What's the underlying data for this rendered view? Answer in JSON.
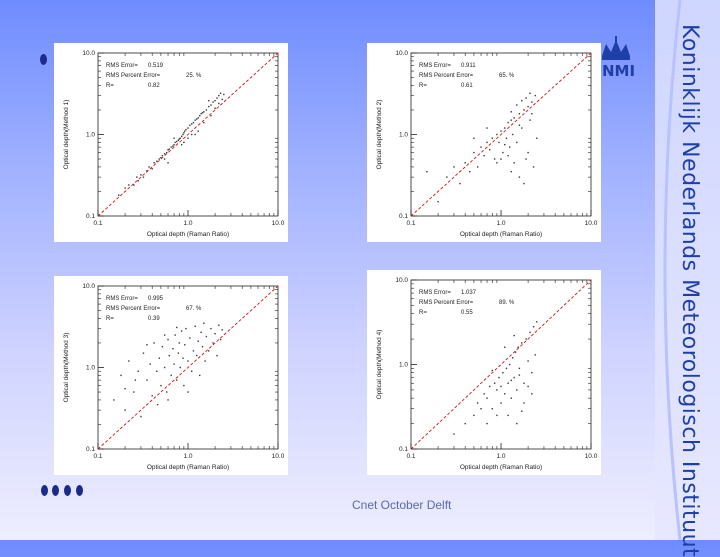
{
  "footer": "Cnet October Delft",
  "logo": {
    "text": "NMI",
    "icon": "crown-icon"
  },
  "sidebar_text": "Koninklijk Nederlands Meteorologisch Instituut",
  "colors": {
    "diagonal": "#c81818",
    "points": "#3a3a3a",
    "title_text": "#1f3fa8"
  },
  "chart_data": [
    {
      "type": "scatter",
      "scale": "log",
      "xlim": [
        0.1,
        10.0
      ],
      "ylim": [
        0.1,
        10.0
      ],
      "xticks": [
        "0.1",
        "1.0",
        "10.0"
      ],
      "yticks": [
        "0.1",
        "1.0",
        "10.0"
      ],
      "xlabel": "Optical depth (Raman Ratio)",
      "ylabel": "Optical depth(Method 1)",
      "stats": [
        {
          "label": "RMS Error=",
          "value": "0.519"
        },
        {
          "label": "RMS Percent Error=",
          "value": "25. %"
        },
        {
          "label": "R=",
          "value": "0.82"
        }
      ],
      "reference_line": "y = x",
      "points": [
        [
          0.17,
          0.18
        ],
        [
          0.2,
          0.22
        ],
        [
          0.22,
          0.24
        ],
        [
          0.25,
          0.24
        ],
        [
          0.27,
          0.3
        ],
        [
          0.28,
          0.27
        ],
        [
          0.3,
          0.32
        ],
        [
          0.32,
          0.3
        ],
        [
          0.35,
          0.36
        ],
        [
          0.37,
          0.4
        ],
        [
          0.4,
          0.38
        ],
        [
          0.42,
          0.45
        ],
        [
          0.45,
          0.47
        ],
        [
          0.48,
          0.5
        ],
        [
          0.5,
          0.52
        ],
        [
          0.52,
          0.55
        ],
        [
          0.55,
          0.58
        ],
        [
          0.58,
          0.6
        ],
        [
          0.6,
          0.65
        ],
        [
          0.62,
          0.66
        ],
        [
          0.65,
          0.7
        ],
        [
          0.68,
          0.72
        ],
        [
          0.7,
          0.75
        ],
        [
          0.72,
          0.8
        ],
        [
          0.75,
          0.82
        ],
        [
          0.78,
          0.85
        ],
        [
          0.8,
          0.88
        ],
        [
          0.82,
          0.9
        ],
        [
          0.85,
          0.95
        ],
        [
          0.88,
          1.0
        ],
        [
          0.9,
          1.05
        ],
        [
          0.92,
          1.1
        ],
        [
          0.95,
          1.15
        ],
        [
          1.0,
          1.2
        ],
        [
          1.05,
          1.3
        ],
        [
          1.1,
          1.35
        ],
        [
          1.15,
          1.4
        ],
        [
          1.2,
          1.5
        ],
        [
          1.25,
          1.55
        ],
        [
          1.3,
          1.6
        ],
        [
          1.35,
          1.7
        ],
        [
          1.4,
          1.8
        ],
        [
          1.45,
          1.85
        ],
        [
          1.5,
          1.9
        ],
        [
          1.6,
          2.0
        ],
        [
          1.7,
          2.2
        ],
        [
          1.8,
          2.3
        ],
        [
          1.9,
          2.5
        ],
        [
          2.0,
          2.6
        ],
        [
          2.1,
          2.8
        ],
        [
          2.2,
          3.0
        ],
        [
          2.3,
          3.2
        ],
        [
          2.4,
          2.7
        ],
        [
          2.5,
          3.1
        ],
        [
          1.2,
          1.0
        ],
        [
          0.9,
          0.8
        ],
        [
          0.7,
          0.9
        ],
        [
          1.5,
          1.4
        ],
        [
          2.0,
          2.1
        ],
        [
          1.8,
          1.7
        ],
        [
          1.3,
          1.1
        ],
        [
          0.55,
          0.5
        ],
        [
          0.6,
          0.45
        ],
        [
          1.0,
          0.9
        ],
        [
          1.7,
          2.6
        ],
        [
          2.2,
          2.4
        ],
        [
          1.1,
          1.0
        ],
        [
          0.85,
          0.75
        ]
      ]
    },
    {
      "type": "scatter",
      "scale": "log",
      "xlim": [
        0.1,
        10.0
      ],
      "ylim": [
        0.1,
        10.0
      ],
      "xticks": [
        "0.1",
        "1.0",
        "10.0"
      ],
      "yticks": [
        "0.1",
        "1.0",
        "10.0"
      ],
      "xlabel": "Optical depth (Raman Ratio)",
      "ylabel": "Optical depth(Method 2)",
      "stats": [
        {
          "label": "RMS Error=",
          "value": "0.911"
        },
        {
          "label": "RMS Percent Error=",
          "value": "65. %"
        },
        {
          "label": "R=",
          "value": "0.61"
        }
      ],
      "reference_line": "y = x",
      "points": [
        [
          0.15,
          0.35
        ],
        [
          0.2,
          0.15
        ],
        [
          0.25,
          0.3
        ],
        [
          0.3,
          0.4
        ],
        [
          0.35,
          0.25
        ],
        [
          0.4,
          0.45
        ],
        [
          0.45,
          0.35
        ],
        [
          0.5,
          0.6
        ],
        [
          0.55,
          0.4
        ],
        [
          0.6,
          0.7
        ],
        [
          0.65,
          0.55
        ],
        [
          0.7,
          0.8
        ],
        [
          0.75,
          0.65
        ],
        [
          0.8,
          0.9
        ],
        [
          0.85,
          0.5
        ],
        [
          0.9,
          1.0
        ],
        [
          0.95,
          0.8
        ],
        [
          1.0,
          1.1
        ],
        [
          1.05,
          0.6
        ],
        [
          1.1,
          1.2
        ],
        [
          1.15,
          0.9
        ],
        [
          1.2,
          1.4
        ],
        [
          1.25,
          0.7
        ],
        [
          1.3,
          1.5
        ],
        [
          1.35,
          1.0
        ],
        [
          1.4,
          1.6
        ],
        [
          1.5,
          0.8
        ],
        [
          1.6,
          1.8
        ],
        [
          1.7,
          1.2
        ],
        [
          1.8,
          2.0
        ],
        [
          1.9,
          0.5
        ],
        [
          2.0,
          2.2
        ],
        [
          2.1,
          1.5
        ],
        [
          2.2,
          2.5
        ],
        [
          2.3,
          0.4
        ],
        [
          2.4,
          3.0
        ],
        [
          1.6,
          0.3
        ],
        [
          1.8,
          0.25
        ],
        [
          2.0,
          0.6
        ],
        [
          1.3,
          0.35
        ],
        [
          1.4,
          0.45
        ],
        [
          1.2,
          0.55
        ],
        [
          0.9,
          0.45
        ],
        [
          1.7,
          2.6
        ],
        [
          1.9,
          2.8
        ],
        [
          2.1,
          3.2
        ],
        [
          1.5,
          2.3
        ],
        [
          1.3,
          1.9
        ],
        [
          0.7,
          1.2
        ],
        [
          0.5,
          0.9
        ],
        [
          1.6,
          1.3
        ],
        [
          2.2,
          1.8
        ],
        [
          1.1,
          0.75
        ],
        [
          1.0,
          0.5
        ],
        [
          2.5,
          0.9
        ]
      ]
    },
    {
      "type": "scatter",
      "scale": "log",
      "xlim": [
        0.1,
        10.0
      ],
      "ylim": [
        0.1,
        10.0
      ],
      "xticks": [
        "0.1",
        "1.0",
        "10.0"
      ],
      "yticks": [
        "0.1",
        "1.0",
        "10.0"
      ],
      "xlabel": "Optical depth (Raman Ratio)",
      "ylabel": "Optical depth(Method 3)",
      "stats": [
        {
          "label": "RMS Error=",
          "value": "0.995"
        },
        {
          "label": "RMS Percent Error=",
          "value": "67. %"
        },
        {
          "label": "R=",
          "value": "0.39"
        }
      ],
      "reference_line": "y = x",
      "points": [
        [
          0.15,
          0.4
        ],
        [
          0.18,
          0.8
        ],
        [
          0.2,
          0.3
        ],
        [
          0.22,
          1.2
        ],
        [
          0.25,
          0.5
        ],
        [
          0.28,
          0.9
        ],
        [
          0.3,
          0.25
        ],
        [
          0.32,
          1.5
        ],
        [
          0.35,
          0.7
        ],
        [
          0.38,
          1.1
        ],
        [
          0.4,
          0.45
        ],
        [
          0.42,
          2.0
        ],
        [
          0.45,
          0.9
        ],
        [
          0.48,
          1.3
        ],
        [
          0.5,
          0.6
        ],
        [
          0.52,
          1.8
        ],
        [
          0.55,
          1.0
        ],
        [
          0.58,
          0.5
        ],
        [
          0.6,
          2.2
        ],
        [
          0.62,
          1.4
        ],
        [
          0.65,
          0.8
        ],
        [
          0.68,
          1.7
        ],
        [
          0.7,
          1.1
        ],
        [
          0.72,
          2.5
        ],
        [
          0.75,
          0.7
        ],
        [
          0.78,
          1.5
        ],
        [
          0.8,
          2.0
        ],
        [
          0.82,
          1.0
        ],
        [
          0.85,
          2.8
        ],
        [
          0.88,
          1.3
        ],
        [
          0.9,
          0.6
        ],
        [
          0.92,
          1.9
        ],
        [
          0.95,
          3.0
        ],
        [
          1.0,
          1.2
        ],
        [
          1.05,
          2.3
        ],
        [
          1.1,
          0.9
        ],
        [
          1.15,
          1.6
        ],
        [
          1.2,
          3.2
        ],
        [
          1.25,
          1.4
        ],
        [
          1.3,
          2.1
        ],
        [
          1.35,
          0.8
        ],
        [
          1.4,
          2.7
        ],
        [
          1.45,
          1.8
        ],
        [
          1.5,
          3.5
        ],
        [
          1.55,
          1.2
        ],
        [
          1.6,
          2.4
        ],
        [
          1.7,
          1.6
        ],
        [
          1.8,
          3.0
        ],
        [
          1.9,
          2.0
        ],
        [
          2.0,
          2.6
        ],
        [
          2.1,
          1.4
        ],
        [
          2.2,
          3.3
        ],
        [
          2.3,
          2.2
        ],
        [
          2.4,
          2.9
        ],
        [
          0.2,
          0.55
        ],
        [
          0.26,
          0.7
        ],
        [
          0.46,
          0.35
        ],
        [
          0.6,
          0.4
        ],
        [
          0.35,
          1.9
        ],
        [
          0.55,
          2.5
        ],
        [
          0.75,
          3.1
        ],
        [
          1.0,
          0.5
        ]
      ]
    },
    {
      "type": "scatter",
      "scale": "log",
      "xlim": [
        0.1,
        10.0
      ],
      "ylim": [
        0.1,
        10.0
      ],
      "xticks": [
        "0.1",
        "1.0",
        "10.0"
      ],
      "yticks": [
        "0.1",
        "1.0",
        "10.0"
      ],
      "xlabel": "Optical depth (Raman Ratio)",
      "ylabel": "Optical depth(Method 4)",
      "stats": [
        {
          "label": "RMS Error=",
          "value": "1.037"
        },
        {
          "label": "RMS Percent Error=",
          "value": "89. %"
        },
        {
          "label": "R=",
          "value": "0.55"
        }
      ],
      "reference_line": "y = x",
      "points": [
        [
          0.3,
          0.15
        ],
        [
          0.4,
          0.2
        ],
        [
          0.5,
          0.25
        ],
        [
          0.55,
          0.35
        ],
        [
          0.6,
          0.3
        ],
        [
          0.65,
          0.45
        ],
        [
          0.7,
          0.4
        ],
        [
          0.75,
          0.55
        ],
        [
          0.8,
          0.3
        ],
        [
          0.85,
          0.6
        ],
        [
          0.9,
          0.5
        ],
        [
          0.95,
          0.7
        ],
        [
          1.0,
          0.35
        ],
        [
          1.05,
          0.8
        ],
        [
          1.1,
          0.45
        ],
        [
          1.15,
          0.9
        ],
        [
          1.2,
          0.6
        ],
        [
          1.25,
          1.0
        ],
        [
          1.3,
          0.4
        ],
        [
          1.35,
          1.2
        ],
        [
          1.4,
          0.7
        ],
        [
          1.45,
          1.4
        ],
        [
          1.5,
          0.5
        ],
        [
          1.55,
          1.6
        ],
        [
          1.6,
          0.9
        ],
        [
          1.7,
          1.8
        ],
        [
          1.8,
          0.6
        ],
        [
          1.9,
          2.0
        ],
        [
          2.0,
          1.1
        ],
        [
          2.1,
          2.4
        ],
        [
          2.2,
          0.8
        ],
        [
          2.3,
          2.8
        ],
        [
          2.4,
          1.3
        ],
        [
          2.5,
          3.2
        ],
        [
          1.2,
          0.25
        ],
        [
          1.5,
          0.2
        ],
        [
          0.9,
          0.25
        ],
        [
          1.8,
          0.35
        ],
        [
          2.2,
          0.45
        ],
        [
          1.0,
          0.55
        ],
        [
          1.3,
          0.65
        ],
        [
          1.6,
          0.75
        ],
        [
          0.7,
          0.2
        ],
        [
          1.1,
          1.6
        ],
        [
          1.4,
          2.2
        ],
        [
          1.7,
          0.28
        ],
        [
          2.0,
          0.55
        ],
        [
          0.8,
          0.85
        ]
      ]
    }
  ]
}
